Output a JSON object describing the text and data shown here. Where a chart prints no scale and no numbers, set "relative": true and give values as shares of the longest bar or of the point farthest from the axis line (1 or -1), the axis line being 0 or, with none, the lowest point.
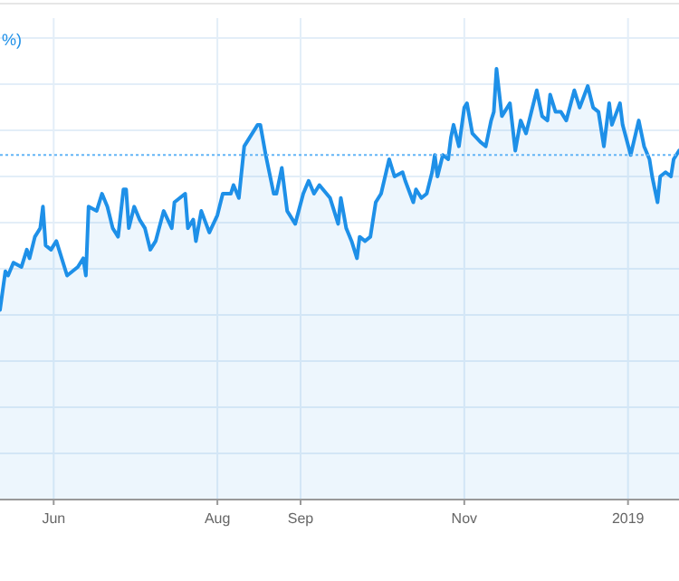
{
  "chart_data": {
    "type": "area",
    "relative": true,
    "grid": true,
    "annotations": [
      "%)"
    ],
    "x": [
      "2018-05-12",
      "2018-05-14",
      "2018-05-15",
      "2018-05-17",
      "2018-05-20",
      "2018-05-22",
      "2018-05-23",
      "2018-05-25",
      "2018-05-27",
      "2018-05-28",
      "2018-05-29",
      "2018-05-31",
      "2018-06-02",
      "2018-06-03",
      "2018-06-06",
      "2018-06-10",
      "2018-06-12",
      "2018-06-13",
      "2018-06-14",
      "2018-06-17",
      "2018-06-19",
      "2018-06-21",
      "2018-06-23",
      "2018-06-25",
      "2018-06-27",
      "2018-06-28",
      "2018-06-29",
      "2018-07-01",
      "2018-07-03",
      "2018-07-05",
      "2018-07-07",
      "2018-07-09",
      "2018-07-12",
      "2018-07-15",
      "2018-07-16",
      "2018-07-20",
      "2018-07-21",
      "2018-07-23",
      "2018-07-24",
      "2018-07-26",
      "2018-07-29",
      "2018-08-01",
      "2018-08-03",
      "2018-08-06",
      "2018-08-07",
      "2018-08-09",
      "2018-08-11",
      "2018-08-13",
      "2018-08-16",
      "2018-08-17",
      "2018-08-19",
      "2018-08-22",
      "2018-08-23",
      "2018-08-25",
      "2018-08-27",
      "2018-08-30",
      "2018-09-02",
      "2018-09-04",
      "2018-09-06",
      "2018-09-08",
      "2018-09-12",
      "2018-09-13",
      "2018-09-15",
      "2018-09-16",
      "2018-09-18",
      "2018-09-20",
      "2018-09-22",
      "2018-09-23",
      "2018-09-25",
      "2018-09-27",
      "2018-09-29",
      "2018-10-01",
      "2018-10-04",
      "2018-10-06",
      "2018-10-09",
      "2018-10-10",
      "2018-10-13",
      "2018-10-14",
      "2018-10-16",
      "2018-10-18",
      "2018-10-20",
      "2018-10-21",
      "2018-10-22",
      "2018-10-24",
      "2018-10-26",
      "2018-10-27",
      "2018-10-28",
      "2018-10-30",
      "2018-11-01",
      "2018-11-02",
      "2018-11-04",
      "2018-11-07",
      "2018-11-09",
      "2018-11-11",
      "2018-11-12",
      "2018-11-13",
      "2018-11-15",
      "2018-11-18",
      "2018-11-20",
      "2018-11-22",
      "2018-11-24",
      "2018-11-26",
      "2018-11-28",
      "2018-11-30",
      "2018-12-02",
      "2018-12-03",
      "2018-12-05",
      "2018-12-07",
      "2018-12-09",
      "2018-12-12",
      "2018-12-14",
      "2018-12-17",
      "2018-12-19",
      "2018-12-21",
      "2018-12-23",
      "2018-12-25",
      "2018-12-26",
      "2018-12-29",
      "2018-12-30",
      "2019-01-02",
      "2019-01-05",
      "2019-01-07",
      "2019-01-09",
      "2019-01-10",
      "2019-01-12",
      "2019-01-13",
      "2019-01-15",
      "2019-01-17",
      "2019-01-18",
      "2019-01-20"
    ],
    "series": [
      {
        "color": "#1e90e8",
        "values": [
          0.44,
          0.53,
          0.52,
          0.55,
          0.54,
          0.58,
          0.56,
          0.61,
          0.63,
          0.68,
          0.59,
          0.58,
          0.6,
          0.58,
          0.52,
          0.54,
          0.56,
          0.52,
          0.68,
          0.67,
          0.71,
          0.68,
          0.63,
          0.61,
          0.72,
          0.72,
          0.63,
          0.68,
          0.65,
          0.63,
          0.58,
          0.6,
          0.67,
          0.63,
          0.69,
          0.71,
          0.63,
          0.65,
          0.6,
          0.67,
          0.62,
          0.66,
          0.71,
          0.71,
          0.73,
          0.7,
          0.82,
          0.84,
          0.87,
          0.87,
          0.8,
          0.71,
          0.71,
          0.77,
          0.67,
          0.64,
          0.71,
          0.74,
          0.71,
          0.73,
          0.7,
          0.68,
          0.64,
          0.7,
          0.63,
          0.6,
          0.56,
          0.61,
          0.6,
          0.61,
          0.69,
          0.71,
          0.79,
          0.75,
          0.76,
          0.74,
          0.69,
          0.72,
          0.7,
          0.71,
          0.76,
          0.8,
          0.75,
          0.8,
          0.79,
          0.84,
          0.87,
          0.82,
          0.91,
          0.92,
          0.85,
          0.83,
          0.82,
          0.88,
          0.9,
          1.0,
          0.89,
          0.92,
          0.81,
          0.88,
          0.85,
          0.9,
          0.95,
          0.89,
          0.88,
          0.94,
          0.9,
          0.9,
          0.88,
          0.95,
          0.91,
          0.96,
          0.91,
          0.9,
          0.82,
          0.92,
          0.87,
          0.92,
          0.87,
          0.8,
          0.88,
          0.82,
          0.79,
          0.75,
          0.69,
          0.75,
          0.76,
          0.75,
          0.79,
          0.81
        ]
      }
    ],
    "xlim": [
      "2018-05-12",
      "2019-01-20"
    ],
    "xticks": [
      {
        "value": "2018-06-01",
        "label": "Jun"
      },
      {
        "value": "2018-08-01",
        "label": "Aug"
      },
      {
        "value": "2018-09-01",
        "label": "Sep"
      },
      {
        "value": "2018-11-01",
        "label": "Nov"
      },
      {
        "value": "2019-01-01",
        "label": "2019"
      }
    ],
    "ref_lines": [
      {
        "axis": "y",
        "value": 0.8,
        "color": "#64b5f6",
        "line_style": "dotted"
      }
    ]
  }
}
